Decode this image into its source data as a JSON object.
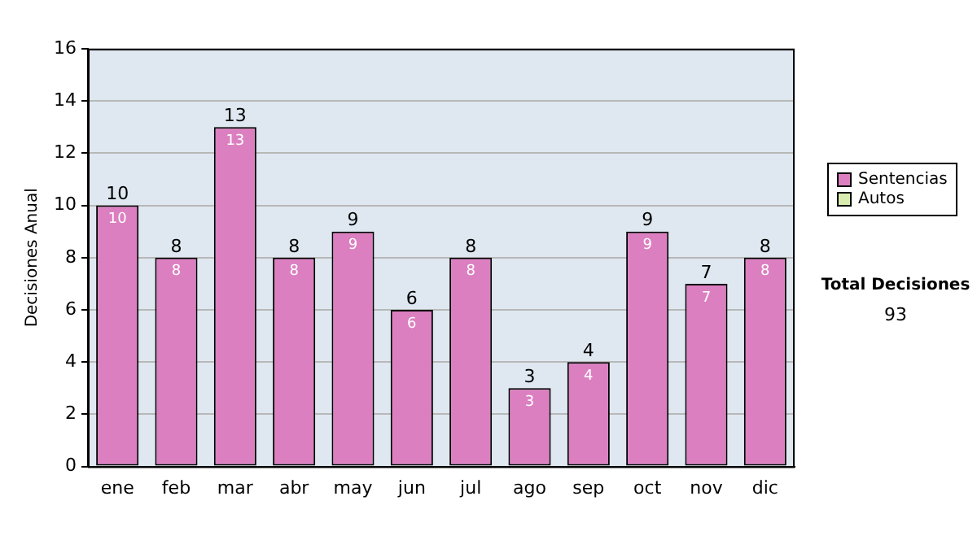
{
  "chart_data": {
    "type": "bar",
    "ylabel": "Decisiones Anual",
    "categories": [
      "ene",
      "feb",
      "mar",
      "abr",
      "may",
      "jun",
      "jul",
      "ago",
      "sep",
      "oct",
      "nov",
      "dic"
    ],
    "series": [
      {
        "name": "Sentencias",
        "color": "#dc7fc0",
        "values": [
          10,
          8,
          13,
          8,
          9,
          6,
          8,
          3,
          4,
          9,
          7,
          8
        ],
        "value_labels": [
          "10",
          "8",
          "13",
          "8",
          "9",
          "6",
          "8",
          "3",
          "4",
          "9",
          "7",
          "8"
        ]
      },
      {
        "name": "Autos",
        "color": "#d8ecb0",
        "values": [
          0,
          0,
          0,
          0,
          0,
          0,
          0,
          0,
          0,
          0,
          0,
          0
        ]
      }
    ],
    "stacked": true,
    "totals": [
      "10",
      "8",
      "13",
      "8",
      "9",
      "6",
      "8",
      "3",
      "4",
      "9",
      "7",
      "8"
    ],
    "ylim": [
      0,
      16
    ],
    "yticks": [
      0,
      2,
      4,
      6,
      8,
      10,
      12,
      14,
      16
    ],
    "grid": "y",
    "legend": "right",
    "annotations": [
      "Total Decisiones",
      "93"
    ]
  }
}
